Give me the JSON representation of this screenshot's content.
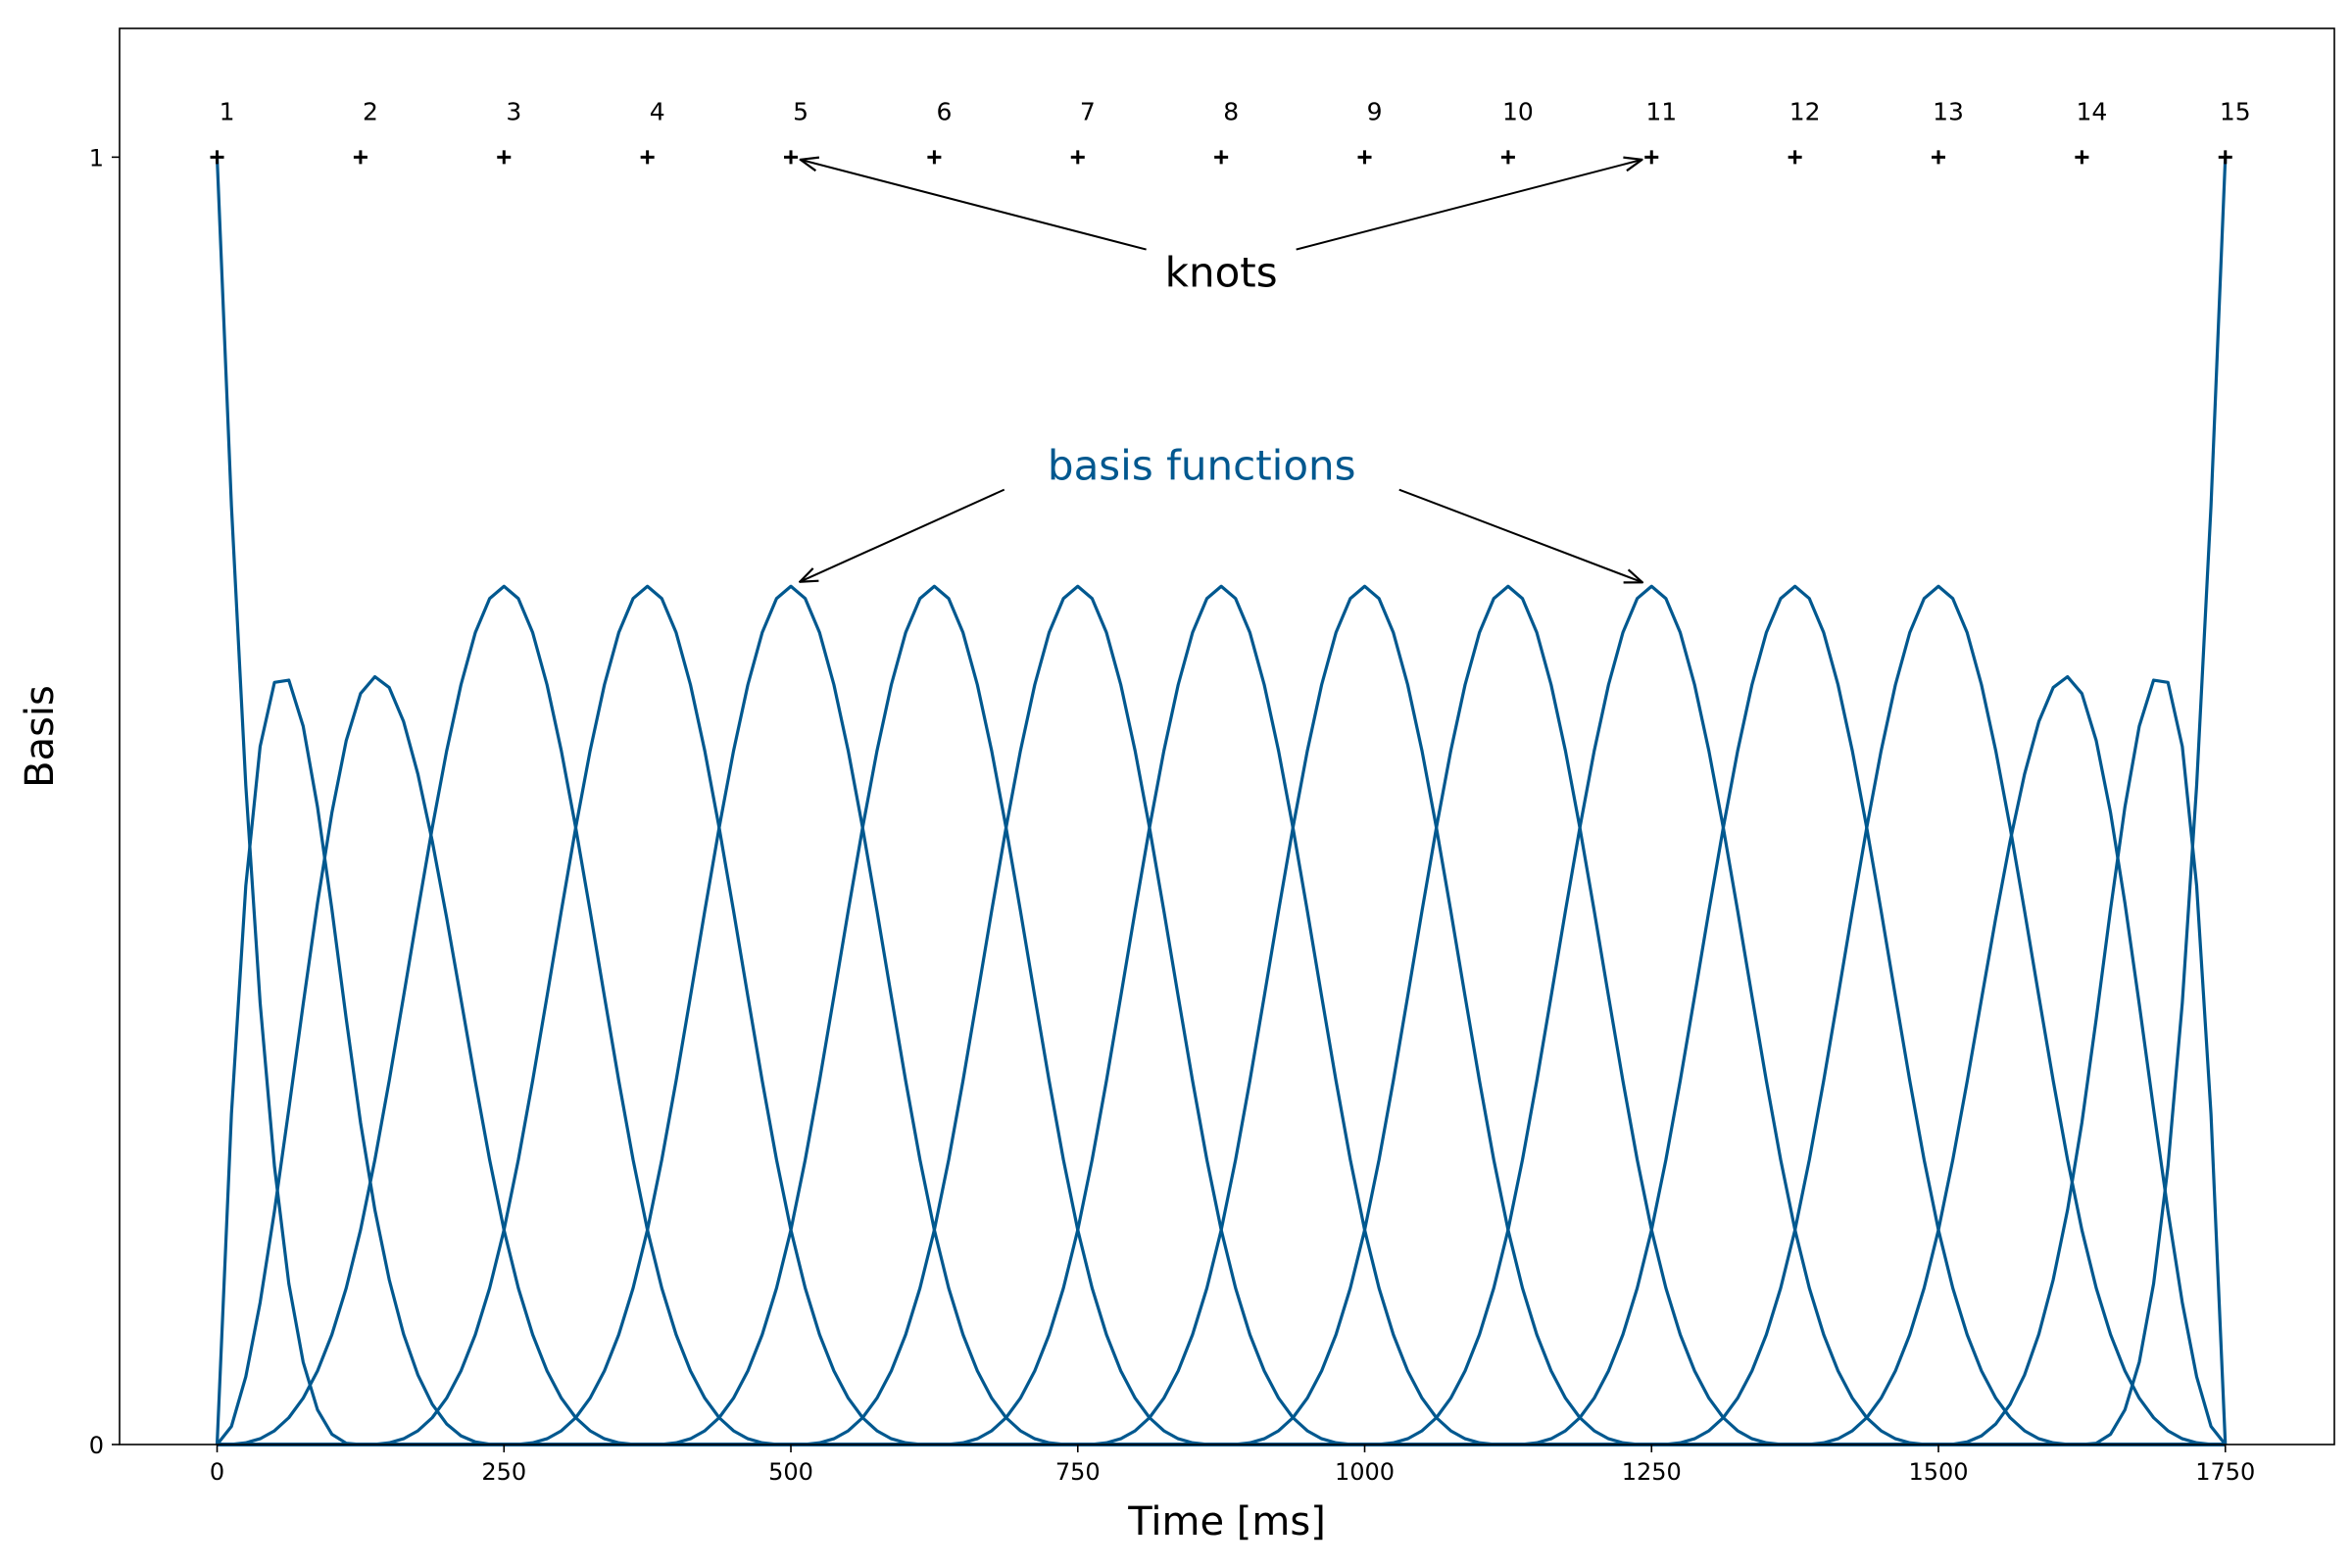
{
  "chart_data": {
    "type": "line",
    "title": "",
    "xlabel": "Time [ms]",
    "ylabel": "Basis",
    "xlim": [
      -85,
      1845
    ],
    "ylim": [
      0,
      1.1
    ],
    "x_ticks": [
      0,
      250,
      500,
      750,
      1000,
      1250,
      1500,
      1750
    ],
    "y_ticks": [
      0,
      1
    ],
    "grid": false,
    "legend": "none",
    "series_color": "#00588f",
    "knot_color": "#000000",
    "spline_degree": 3,
    "knots": [
      {
        "label": "1",
        "x": 0,
        "y": 1
      },
      {
        "label": "2",
        "x": 125,
        "y": 1
      },
      {
        "label": "3",
        "x": 250,
        "y": 1
      },
      {
        "label": "4",
        "x": 375,
        "y": 1
      },
      {
        "label": "5",
        "x": 500,
        "y": 1
      },
      {
        "label": "6",
        "x": 625,
        "y": 1
      },
      {
        "label": "7",
        "x": 750,
        "y": 1
      },
      {
        "label": "8",
        "x": 875,
        "y": 1
      },
      {
        "label": "9",
        "x": 1000,
        "y": 1
      },
      {
        "label": "10",
        "x": 1125,
        "y": 1
      },
      {
        "label": "11",
        "x": 1250,
        "y": 1
      },
      {
        "label": "12",
        "x": 1375,
        "y": 1
      },
      {
        "label": "13",
        "x": 1500,
        "y": 1
      },
      {
        "label": "14",
        "x": 1625,
        "y": 1
      },
      {
        "label": "15",
        "x": 1750,
        "y": 1
      }
    ],
    "annotations": [
      {
        "text": "knots",
        "color": "#000000",
        "text_x": 875,
        "text_y": 0.91,
        "targets": [
          [
            500,
            1
          ],
          [
            1250,
            1
          ]
        ]
      },
      {
        "text": "basis functions",
        "color": "#00588f",
        "text_x": 858,
        "text_y": 0.76,
        "targets": [
          [
            500,
            0.667
          ],
          [
            1250,
            0.667
          ]
        ]
      }
    ]
  }
}
